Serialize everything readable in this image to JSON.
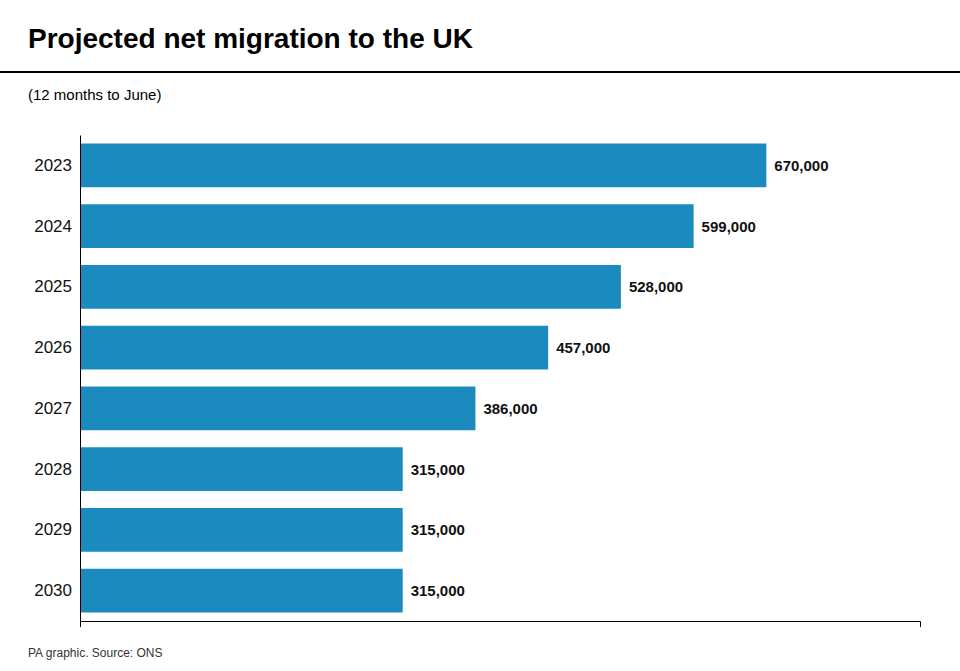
{
  "chart_data": {
    "type": "bar",
    "orientation": "horizontal",
    "title": "Projected net migration to the UK",
    "subtitle": "(12 months to June)",
    "annotations": [
      "PA graphic. Source: ONS"
    ],
    "categories": [
      "2023",
      "2024",
      "2025",
      "2026",
      "2027",
      "2028",
      "2029",
      "2030"
    ],
    "values": [
      670000,
      599000,
      528000,
      457000,
      386000,
      315000,
      315000,
      315000
    ],
    "value_labels": [
      "670,000",
      "599,000",
      "528,000",
      "457,000",
      "386,000",
      "315,000",
      "315,000",
      "315,000"
    ],
    "data_labels": true,
    "color": "#1a8abf",
    "xlim": [
      0,
      820000
    ],
    "tick_labels": "y",
    "grid": false
  }
}
